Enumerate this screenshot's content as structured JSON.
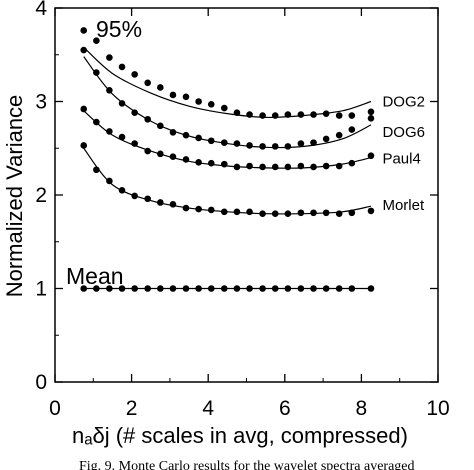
{
  "chart_data": {
    "type": "scatter",
    "title": "",
    "xlabel": "nₐδj (# scales in avg, compressed)",
    "ylabel": "Normalized Variance",
    "xlim": [
      0,
      10
    ],
    "ylim": [
      0,
      4
    ],
    "xticks": [
      "0",
      "2",
      "4",
      "6",
      "8",
      "10"
    ],
    "yticks": [
      "0",
      "1",
      "2",
      "3",
      "4"
    ],
    "grid": false,
    "annotations": {
      "percentile": "95%",
      "mean": "Mean"
    },
    "caption": "Fig. 9. Monte Carlo results for the wavelet spectra averaged",
    "series": [
      {
        "name": "DOG2",
        "points": [
          [
            0.75,
            3.76
          ],
          [
            1.08,
            3.65
          ],
          [
            1.42,
            3.47
          ],
          [
            1.75,
            3.37
          ],
          [
            2.08,
            3.29
          ],
          [
            2.42,
            3.2
          ],
          [
            2.75,
            3.15
          ],
          [
            3.08,
            3.07
          ],
          [
            3.42,
            3.05
          ],
          [
            3.75,
            3.0
          ],
          [
            4.08,
            2.97
          ],
          [
            4.42,
            2.93
          ],
          [
            4.75,
            2.88
          ],
          [
            5.08,
            2.86
          ],
          [
            5.42,
            2.85
          ],
          [
            5.75,
            2.85
          ],
          [
            6.08,
            2.86
          ],
          [
            6.42,
            2.86
          ],
          [
            6.75,
            2.86
          ],
          [
            7.08,
            2.87
          ],
          [
            7.42,
            2.85
          ],
          [
            7.75,
            2.85
          ],
          [
            8.25,
            2.89
          ]
        ],
        "curve": [
          [
            0.75,
            3.58
          ],
          [
            1.5,
            3.3
          ],
          [
            2.5,
            3.09
          ],
          [
            3.5,
            2.95
          ],
          [
            4.5,
            2.87
          ],
          [
            5.5,
            2.83
          ],
          [
            6.5,
            2.85
          ],
          [
            7.5,
            2.9
          ],
          [
            8.25,
            3.0
          ]
        ]
      },
      {
        "name": "DOG6",
        "points": [
          [
            0.75,
            3.55
          ],
          [
            1.08,
            3.31
          ],
          [
            1.42,
            3.12
          ],
          [
            1.75,
            2.98
          ],
          [
            2.08,
            2.88
          ],
          [
            2.42,
            2.81
          ],
          [
            2.75,
            2.74
          ],
          [
            3.08,
            2.67
          ],
          [
            3.42,
            2.64
          ],
          [
            3.75,
            2.61
          ],
          [
            4.08,
            2.58
          ],
          [
            4.42,
            2.56
          ],
          [
            4.75,
            2.55
          ],
          [
            5.08,
            2.53
          ],
          [
            5.42,
            2.52
          ],
          [
            5.75,
            2.52
          ],
          [
            6.08,
            2.52
          ],
          [
            6.42,
            2.55
          ],
          [
            6.75,
            2.56
          ],
          [
            7.08,
            2.6
          ],
          [
            7.42,
            2.64
          ],
          [
            7.75,
            2.7
          ],
          [
            8.25,
            2.82
          ]
        ],
        "curve": [
          [
            0.75,
            3.48
          ],
          [
            1.5,
            3.08
          ],
          [
            2.5,
            2.79
          ],
          [
            3.5,
            2.63
          ],
          [
            4.5,
            2.55
          ],
          [
            5.5,
            2.51
          ],
          [
            6.5,
            2.52
          ],
          [
            7.5,
            2.6
          ],
          [
            8.25,
            2.75
          ]
        ]
      },
      {
        "name": "Paul4",
        "points": [
          [
            0.75,
            2.92
          ],
          [
            1.08,
            2.78
          ],
          [
            1.42,
            2.68
          ],
          [
            1.75,
            2.62
          ],
          [
            2.08,
            2.55
          ],
          [
            2.42,
            2.47
          ],
          [
            2.75,
            2.44
          ],
          [
            3.08,
            2.41
          ],
          [
            3.42,
            2.38
          ],
          [
            3.75,
            2.35
          ],
          [
            4.08,
            2.34
          ],
          [
            4.42,
            2.33
          ],
          [
            4.75,
            2.3
          ],
          [
            5.08,
            2.31
          ],
          [
            5.42,
            2.3
          ],
          [
            5.75,
            2.3
          ],
          [
            6.08,
            2.3
          ],
          [
            6.42,
            2.31
          ],
          [
            6.75,
            2.3
          ],
          [
            7.08,
            2.31
          ],
          [
            7.42,
            2.31
          ],
          [
            7.75,
            2.34
          ],
          [
            8.25,
            2.42
          ]
        ],
        "curve": [
          [
            0.75,
            2.9
          ],
          [
            1.5,
            2.64
          ],
          [
            2.5,
            2.47
          ],
          [
            3.5,
            2.36
          ],
          [
            4.5,
            2.31
          ],
          [
            5.5,
            2.29
          ],
          [
            6.5,
            2.29
          ],
          [
            7.5,
            2.33
          ],
          [
            8.25,
            2.4
          ]
        ]
      },
      {
        "name": "Morlet",
        "points": [
          [
            0.75,
            2.53
          ],
          [
            1.08,
            2.27
          ],
          [
            1.42,
            2.15
          ],
          [
            1.75,
            2.05
          ],
          [
            2.08,
            1.99
          ],
          [
            2.42,
            1.96
          ],
          [
            2.75,
            1.92
          ],
          [
            3.08,
            1.9
          ],
          [
            3.42,
            1.86
          ],
          [
            3.75,
            1.85
          ],
          [
            4.08,
            1.84
          ],
          [
            4.42,
            1.82
          ],
          [
            4.75,
            1.82
          ],
          [
            5.08,
            1.82
          ],
          [
            5.42,
            1.8
          ],
          [
            5.75,
            1.8
          ],
          [
            6.08,
            1.8
          ],
          [
            6.42,
            1.81
          ],
          [
            6.75,
            1.81
          ],
          [
            7.08,
            1.81
          ],
          [
            7.42,
            1.8
          ],
          [
            7.75,
            1.81
          ],
          [
            8.25,
            1.83
          ]
        ],
        "curve": [
          [
            0.75,
            2.5
          ],
          [
            1.5,
            2.11
          ],
          [
            2.5,
            1.94
          ],
          [
            3.5,
            1.86
          ],
          [
            4.5,
            1.82
          ],
          [
            5.5,
            1.8
          ],
          [
            6.5,
            1.8
          ],
          [
            7.5,
            1.82
          ],
          [
            8.25,
            1.88
          ]
        ]
      },
      {
        "name": "Mean",
        "points": [
          [
            0.75,
            1.0
          ],
          [
            1.08,
            1.0
          ],
          [
            1.42,
            1.0
          ],
          [
            1.75,
            1.0
          ],
          [
            2.08,
            1.0
          ],
          [
            2.42,
            1.0
          ],
          [
            2.75,
            1.0
          ],
          [
            3.08,
            1.0
          ],
          [
            3.42,
            1.0
          ],
          [
            3.75,
            1.0
          ],
          [
            4.08,
            1.0
          ],
          [
            4.42,
            1.0
          ],
          [
            4.75,
            1.0
          ],
          [
            5.08,
            1.0
          ],
          [
            5.42,
            1.0
          ],
          [
            5.75,
            1.0
          ],
          [
            6.08,
            1.0
          ],
          [
            6.42,
            1.0
          ],
          [
            6.75,
            1.0
          ],
          [
            7.08,
            1.0
          ],
          [
            7.42,
            1.0
          ],
          [
            7.75,
            1.0
          ],
          [
            8.25,
            1.0
          ]
        ],
        "curve": [
          [
            0.75,
            1.0
          ],
          [
            8.25,
            1.0
          ]
        ]
      }
    ],
    "colors": {
      "ink": "#000000",
      "background": "#ffffff"
    }
  }
}
